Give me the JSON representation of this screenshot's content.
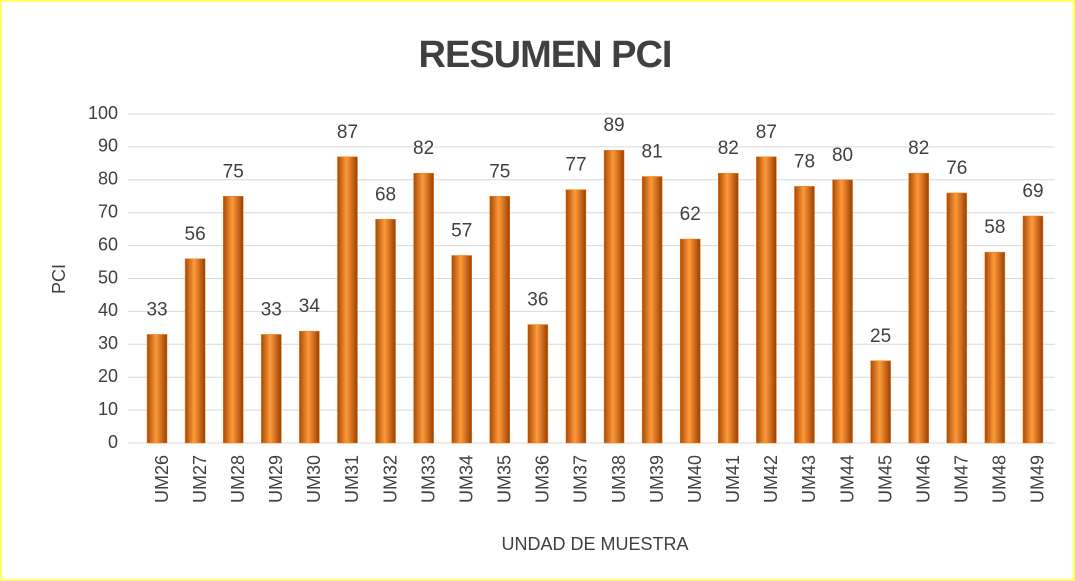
{
  "chart_data": {
    "type": "bar",
    "title": "RESUMEN PCI",
    "y_label": "PCI",
    "x_label": "UNDAD DE MUESTRA",
    "categories": [
      "UM26",
      "UM27",
      "UM28",
      "UM29",
      "UM30",
      "UM31",
      "UM32",
      "UM33",
      "UM34",
      "UM35",
      "UM36",
      "UM37",
      "UM38",
      "UM39",
      "UM40",
      "UM41",
      "UM42",
      "UM43",
      "UM44",
      "UM45",
      "UM46",
      "UM47",
      "UM48",
      "UM49"
    ],
    "values": [
      33,
      56,
      75,
      33,
      34,
      87,
      68,
      82,
      57,
      75,
      36,
      77,
      89,
      81,
      62,
      82,
      87,
      78,
      80,
      25,
      82,
      76,
      58,
      69
    ],
    "color": "#f07c14",
    "ylim": [
      0,
      100
    ],
    "yticks": [
      0,
      10,
      20,
      30,
      40,
      50,
      60,
      70,
      80,
      90,
      100
    ],
    "grid": true
  }
}
